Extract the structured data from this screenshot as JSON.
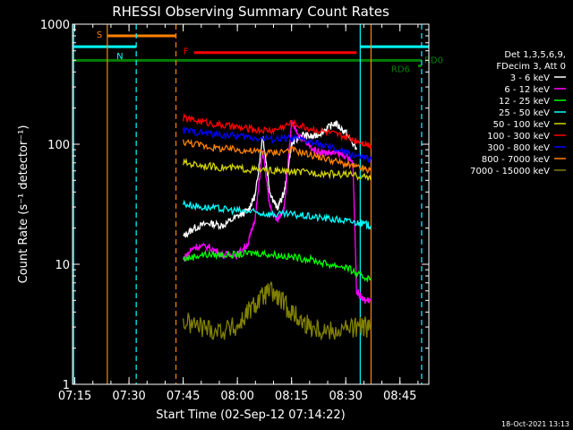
{
  "chart_data": {
    "type": "line",
    "title": "RHESSI Observing Summary Count Rates",
    "xlabel": "Start Time (02-Sep-12 07:14:22)",
    "ylabel": "Count Rate (s⁻¹ detector⁻¹)",
    "y_scale": "log",
    "ylim": [
      1,
      1000
    ],
    "xlim": [
      "07:14:22",
      "08:53"
    ],
    "x_ticks": [
      "07:15",
      "07:30",
      "07:45",
      "08:00",
      "08:15",
      "08:30",
      "08:45"
    ],
    "y_ticks": [
      "1",
      "10",
      "100",
      "1000"
    ],
    "footer_date": "18-Oct-2021 13:13",
    "legend": {
      "placement": "right",
      "header": [
        "Det 1,3,5,6,9,",
        "FDecim 3, Att 0"
      ],
      "entries": [
        {
          "label": "3 - 6 keV",
          "color": "#ffffff"
        },
        {
          "label": "6 - 12 keV",
          "color": "#ff00ff"
        },
        {
          "label": "12 - 25 keV",
          "color": "#00ff00"
        },
        {
          "label": "25 - 50 keV",
          "color": "#00ffff"
        },
        {
          "label": "50 - 100 keV",
          "color": "#d2d200"
        },
        {
          "label": "100 - 300 keV",
          "color": "#ff0000"
        },
        {
          "label": "300 - 800 keV",
          "color": "#0000ff"
        },
        {
          "label": "800 - 7000 keV",
          "color": "#ff8000"
        },
        {
          "label": "7000 - 15000 keV",
          "color": "#808000"
        }
      ]
    },
    "flags": [
      {
        "label": "S",
        "start": "07:24",
        "end": "07:43",
        "y": 800,
        "color": "#ff8000"
      },
      {
        "label": "N",
        "start": "07:14:22",
        "end": "07:32",
        "y": 650,
        "color": "#00ffff"
      },
      {
        "label": "N",
        "start": "08:34",
        "end": "08:53",
        "y": 650,
        "color": "#00ffff"
      },
      {
        "label": "F",
        "start": "07:48",
        "end": "08:33",
        "y": 580,
        "color": "#ff0000"
      },
      {
        "label": "RD0",
        "start": "07:14:22",
        "end": "08:51",
        "y": 500,
        "color": "#008000"
      },
      {
        "label": "RD6",
        "start": "08:50",
        "end": "08:51",
        "y": 450,
        "color": "#008000"
      }
    ],
    "vlines": [
      {
        "t": "07:14:40",
        "color": "#00ffff",
        "style": "solid"
      },
      {
        "t": "07:24",
        "color": "#ff8000",
        "style": "solid"
      },
      {
        "t": "07:32",
        "color": "#00ffff",
        "style": "dashed"
      },
      {
        "t": "07:43",
        "color": "#ff8000",
        "style": "dashed"
      },
      {
        "t": "08:34",
        "color": "#00ffff",
        "style": "solid"
      },
      {
        "t": "08:37",
        "color": "#ff8000",
        "style": "solid"
      },
      {
        "t": "08:51",
        "color": "#00ffff",
        "style": "dashed"
      }
    ],
    "series": [
      {
        "name": "3 - 6 keV",
        "color": "#ffffff",
        "x": [
          "07:45",
          "07:48",
          "07:52",
          "07:56",
          "08:00",
          "08:03",
          "08:05",
          "08:07",
          "08:09",
          "08:11",
          "08:13",
          "08:15",
          "08:18",
          "08:21",
          "08:24",
          "08:27",
          "08:30",
          "08:33"
        ],
        "y": [
          17,
          20,
          22,
          21,
          25,
          28,
          38,
          120,
          40,
          29,
          40,
          100,
          120,
          115,
          130,
          150,
          125,
          90
        ]
      },
      {
        "name": "6 - 12 keV",
        "color": "#ff00ff",
        "x": [
          "07:45",
          "07:48",
          "07:52",
          "07:56",
          "08:00",
          "08:03",
          "08:05",
          "08:07",
          "08:09",
          "08:11",
          "08:13",
          "08:15",
          "08:18",
          "08:21",
          "08:24",
          "08:27",
          "08:30",
          "08:32",
          "08:33",
          "08:35",
          "08:37"
        ],
        "y": [
          11,
          14,
          14,
          12,
          12,
          15,
          25,
          90,
          30,
          23,
          30,
          150,
          110,
          90,
          85,
          85,
          80,
          70,
          6,
          5,
          5
        ]
      },
      {
        "name": "12 - 25 keV",
        "color": "#00ff00",
        "x": [
          "07:45",
          "07:50",
          "07:55",
          "08:00",
          "08:05",
          "08:10",
          "08:15",
          "08:20",
          "08:25",
          "08:30",
          "08:34",
          "08:37"
        ],
        "y": [
          11,
          12,
          12,
          12,
          12.5,
          12,
          11.5,
          11,
          10,
          9.5,
          8,
          7.5
        ]
      },
      {
        "name": "25 - 50 keV",
        "color": "#00ffff",
        "x": [
          "07:45",
          "07:50",
          "07:55",
          "08:00",
          "08:05",
          "08:10",
          "08:15",
          "08:20",
          "08:25",
          "08:30",
          "08:34",
          "08:37"
        ],
        "y": [
          32,
          30,
          29,
          28,
          27,
          26,
          26,
          25,
          24,
          23,
          22,
          21
        ]
      },
      {
        "name": "50 - 100 keV",
        "color": "#d2d200",
        "x": [
          "07:45",
          "07:50",
          "07:55",
          "08:00",
          "08:05",
          "08:10",
          "08:15",
          "08:20",
          "08:25",
          "08:30",
          "08:34",
          "08:37"
        ],
        "y": [
          70,
          67,
          64,
          63,
          61,
          60,
          59,
          58,
          57,
          56,
          54,
          53
        ]
      },
      {
        "name": "100 - 300 keV",
        "color": "#ff0000",
        "x": [
          "07:45",
          "07:50",
          "07:55",
          "08:00",
          "08:05",
          "08:10",
          "08:15",
          "08:20",
          "08:25",
          "08:30",
          "08:34",
          "08:37"
        ],
        "y": [
          165,
          155,
          145,
          138,
          132,
          130,
          150,
          135,
          125,
          115,
          105,
          98
        ]
      },
      {
        "name": "300 - 800 keV",
        "color": "#0000ff",
        "x": [
          "07:45",
          "07:50",
          "07:55",
          "08:00",
          "08:05",
          "08:10",
          "08:15",
          "08:20",
          "08:25",
          "08:30",
          "08:34",
          "08:37"
        ],
        "y": [
          130,
          125,
          120,
          117,
          113,
          110,
          112,
          105,
          95,
          85,
          78,
          75
        ]
      },
      {
        "name": "800 - 7000 keV",
        "color": "#ff8000",
        "x": [
          "07:45",
          "07:50",
          "07:55",
          "08:00",
          "08:05",
          "08:10",
          "08:15",
          "08:20",
          "08:25",
          "08:30",
          "08:34",
          "08:37"
        ],
        "y": [
          105,
          98,
          92,
          90,
          87,
          85,
          90,
          82,
          75,
          68,
          63,
          60
        ]
      },
      {
        "name": "7000 - 15000 keV",
        "color": "#808000",
        "x": [
          "07:45",
          "07:50",
          "07:55",
          "08:00",
          "08:03",
          "08:06",
          "08:09",
          "08:12",
          "08:15",
          "08:18",
          "08:21",
          "08:25",
          "08:30",
          "08:34",
          "08:37"
        ],
        "y": [
          3.3,
          3.0,
          2.8,
          3.0,
          4.0,
          5.0,
          6.0,
          5.0,
          4.0,
          3.3,
          3.0,
          2.8,
          2.9,
          3.0,
          3.0
        ]
      }
    ]
  }
}
